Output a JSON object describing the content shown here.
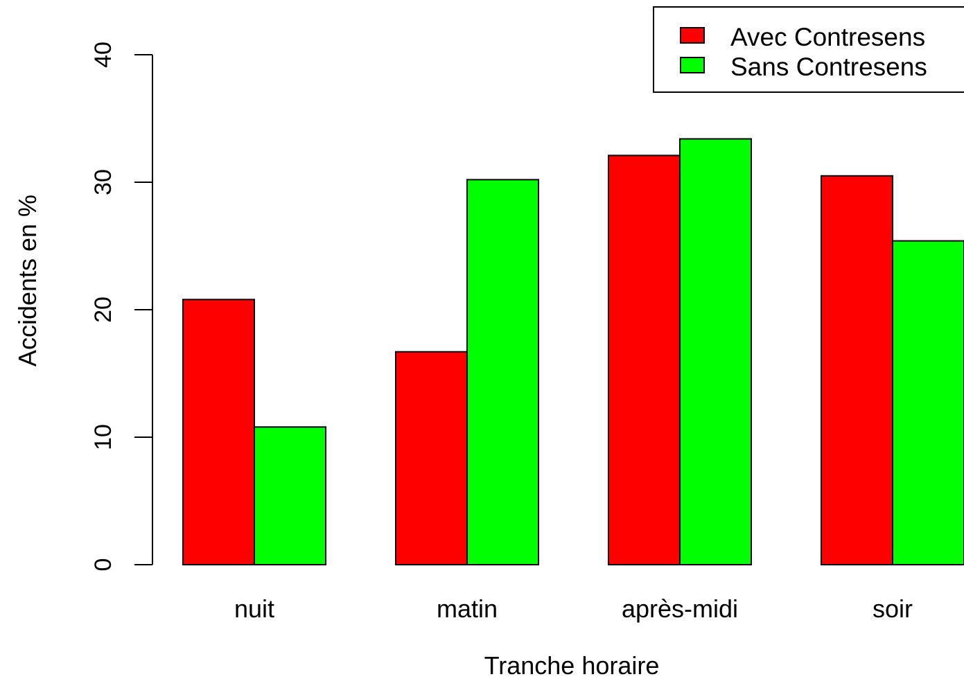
{
  "chart_data": {
    "type": "bar",
    "title": "",
    "xlabel": "Tranche horaire",
    "ylabel": "Accidents en %",
    "categories": [
      "nuit",
      "matin",
      "après-midi",
      "soir"
    ],
    "series": [
      {
        "name": "Avec Contresens",
        "color": "#ff0000",
        "values": [
          20.8,
          16.7,
          32.1,
          30.5
        ]
      },
      {
        "name": "Sans Contresens",
        "color": "#00ff00",
        "values": [
          10.8,
          30.2,
          33.4,
          25.4
        ]
      }
    ],
    "ylim": [
      0,
      40
    ],
    "yticks": [
      "0",
      "10",
      "20",
      "30",
      "40"
    ],
    "grid": false,
    "legend_position": "top-right"
  }
}
